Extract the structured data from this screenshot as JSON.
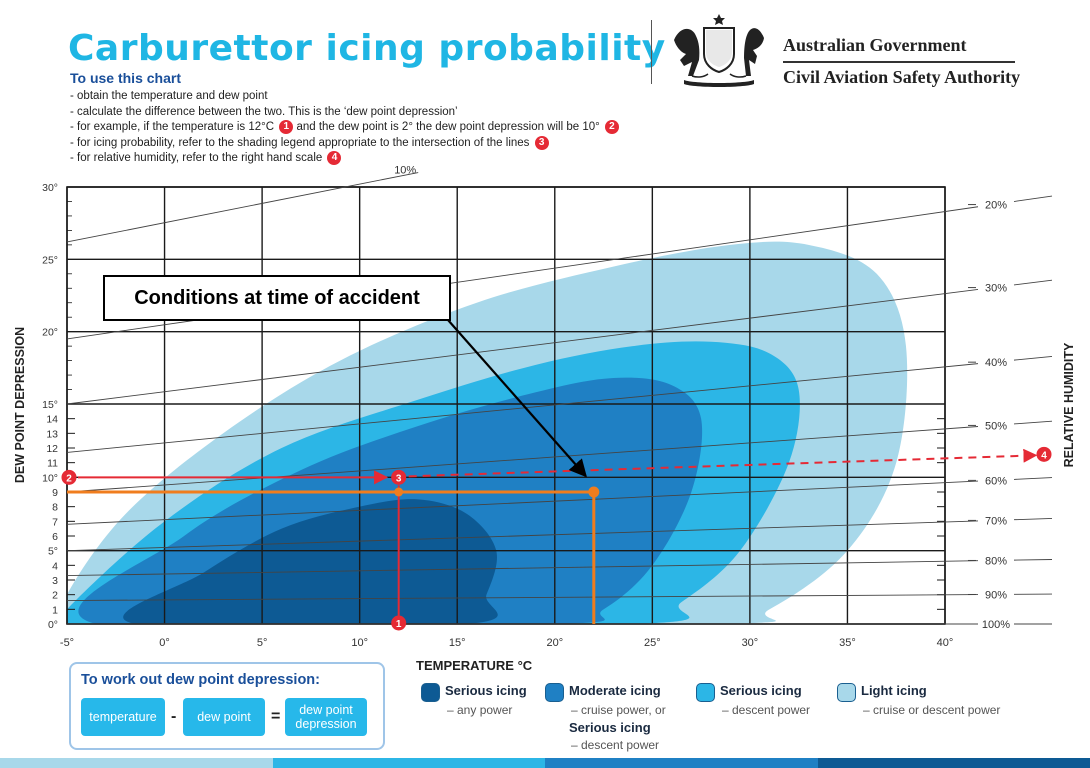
{
  "header": {
    "title": "Carburettor icing probability",
    "how_to_title": "To use this chart",
    "steps": [
      "- obtain the temperature and dew point",
      "- calculate the difference between the two. This is the ‘dew point depression’",
      "- for example, if the temperature is 12°C",
      "and the dew point is 2° the dew point depression will be 10°",
      "- for icing probability, refer to the shading legend appropriate to the intersection of the lines",
      "- for relative humidity, refer to the right hand scale"
    ],
    "marker_numbers": [
      "1",
      "2",
      "3",
      "4"
    ],
    "gov_line1": "Australian Government",
    "gov_line2": "Civil Aviation Safety Authority",
    "crest_icon": "coat-of-arms-icon"
  },
  "chart_data": {
    "type": "area",
    "title": "",
    "xlabel": "TEMPERATURE °C",
    "ylabel": "DEW POINT DEPRESSION",
    "ylabel_right": "RELATIVE HUMIDITY",
    "xlim": [
      -5,
      40
    ],
    "ylim": [
      0,
      30
    ],
    "x_ticks": [
      -5,
      0,
      5,
      10,
      15,
      20,
      25,
      30,
      35,
      40
    ],
    "x_tick_labels": [
      "-5°",
      "0°",
      "5°",
      "10°",
      "15°",
      "20°",
      "25°",
      "30°",
      "35°",
      "40°"
    ],
    "y_ticks": [
      0,
      1,
      2,
      3,
      4,
      5,
      6,
      7,
      8,
      9,
      10,
      11,
      12,
      13,
      14,
      15,
      20,
      25,
      30
    ],
    "y_tick_labels": [
      "0°",
      "1",
      "2",
      "3",
      "4",
      "5°",
      "6",
      "7",
      "8",
      "9",
      "10°",
      "11",
      "12",
      "13",
      "14",
      "15°",
      "20°",
      "25°",
      "30°"
    ],
    "grid": true,
    "humidity_lines": [
      {
        "label": "10%",
        "points": [
          [
            -5,
            26.2
          ],
          [
            13,
            31.0
          ]
        ]
      },
      {
        "label": "20%",
        "points": [
          [
            -5,
            19.5
          ],
          [
            41,
            28.5
          ]
        ]
      },
      {
        "label": "30%",
        "points": [
          [
            -5,
            15.0
          ],
          [
            41,
            22.8
          ]
        ]
      },
      {
        "label": "40%",
        "points": [
          [
            -5,
            11.7
          ],
          [
            41,
            17.7
          ]
        ]
      },
      {
        "label": "50%",
        "points": [
          [
            -5,
            9.0
          ],
          [
            41,
            13.4
          ]
        ]
      },
      {
        "label": "60%",
        "points": [
          [
            -5,
            6.8
          ],
          [
            41,
            9.7
          ]
        ]
      },
      {
        "label": "70%",
        "points": [
          [
            -5,
            5.0
          ],
          [
            41,
            7.0
          ]
        ]
      },
      {
        "label": "80%",
        "points": [
          [
            -5,
            3.3
          ],
          [
            41,
            4.3
          ]
        ]
      },
      {
        "label": "90%",
        "points": [
          [
            -5,
            1.6
          ],
          [
            41,
            2.0
          ]
        ]
      },
      {
        "label": "100%",
        "points": [
          [
            -5,
            0
          ],
          [
            41,
            0
          ]
        ]
      }
    ],
    "series": [
      {
        "name": "Light icing",
        "color": "#a8d8ea",
        "outline": [
          [
            -5,
            2
          ],
          [
            -2,
            7.5
          ],
          [
            3,
            13
          ],
          [
            9,
            18
          ],
          [
            16,
            22
          ],
          [
            23,
            24.5
          ],
          [
            29,
            26
          ],
          [
            33,
            26
          ],
          [
            36.5,
            24
          ],
          [
            38,
            19
          ],
          [
            37.5,
            11
          ],
          [
            35,
            5
          ],
          [
            31,
            1
          ],
          [
            28,
            0
          ],
          [
            -5,
            0
          ]
        ]
      },
      {
        "name": "Serious icing",
        "color": "#2cb6e6",
        "outline": [
          [
            -5,
            1
          ],
          [
            0,
            7
          ],
          [
            6,
            12
          ],
          [
            13,
            15.3
          ],
          [
            19,
            17.7
          ],
          [
            24,
            19
          ],
          [
            28,
            19.3
          ],
          [
            31,
            18.5
          ],
          [
            32.5,
            16
          ],
          [
            32,
            11
          ],
          [
            29.5,
            5
          ],
          [
            26.5,
            1.5
          ],
          [
            24,
            0
          ],
          [
            -5,
            0
          ]
        ]
      },
      {
        "name": "Moderate icing",
        "color": "#1f80c4",
        "outline": [
          [
            -3.5,
            0
          ],
          [
            1,
            6
          ],
          [
            7,
            10.5
          ],
          [
            13,
            13.5
          ],
          [
            19,
            15.8
          ],
          [
            23,
            16.8
          ],
          [
            26,
            16.3
          ],
          [
            27.5,
            14
          ],
          [
            27,
            9
          ],
          [
            25,
            4
          ],
          [
            22.5,
            1
          ],
          [
            20,
            0
          ]
        ]
      },
      {
        "name": "Serious icing",
        "color": "#0d5a94",
        "outline": [
          [
            -1.5,
            0
          ],
          [
            2,
            3.5
          ],
          [
            6,
            6.5
          ],
          [
            10,
            8
          ],
          [
            13,
            8.5
          ],
          [
            15.5,
            7.5
          ],
          [
            17,
            5
          ],
          [
            16.5,
            2
          ],
          [
            15.5,
            0
          ]
        ]
      }
    ],
    "annotations": {
      "callout": "Conditions at time of accident",
      "accident_point": [
        22,
        9
      ],
      "example_temperature": 12,
      "example_dew_point_depression": 10,
      "example_relative_humidity": "50%",
      "marker_3_point": [
        12,
        10
      ]
    }
  },
  "dew_point_box": {
    "title": "To work out dew point depression:",
    "temperature": "temperature",
    "minus": "-",
    "dew_point": "dew point",
    "equals": "=",
    "result_line1": "dew point",
    "result_line2": "depression"
  },
  "legend": [
    {
      "name": "Serious icing",
      "sub": "– any power",
      "color": "#0d5a94"
    },
    {
      "name": "Moderate icing",
      "sub": "– cruise power, or",
      "name2": "Serious icing",
      "sub2": "– descent power",
      "color": "#1f80c4"
    },
    {
      "name": "Serious icing",
      "sub": "– descent power",
      "color": "#2cb6e6"
    },
    {
      "name": "Light icing",
      "sub": "– cruise or descent power",
      "color": "#a8d8ea"
    }
  ],
  "colors": {
    "title": "#1fb6e4",
    "marker_red": "#e52a35",
    "accident_orange": "#f07d1e",
    "footer": [
      "#a8d8ea",
      "#2cb6e6",
      "#1f80c4",
      "#0d5a94"
    ]
  }
}
